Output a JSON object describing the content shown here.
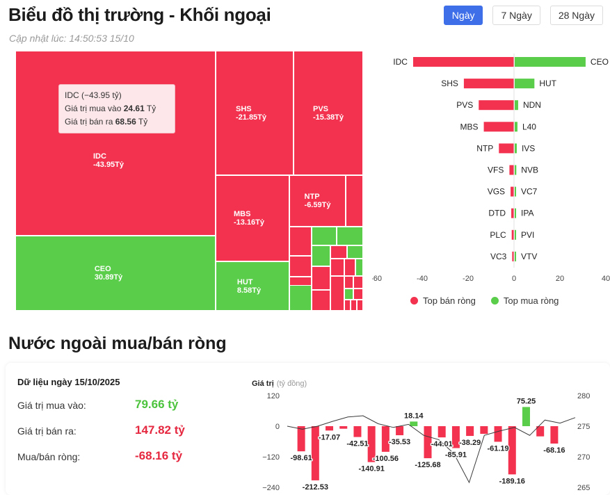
{
  "header": {
    "title": "Biểu đồ thị trường - Khối ngoại",
    "updated": "Cập nhật lúc: 14:50:53 15/10",
    "tabs": [
      {
        "label": "Ngày",
        "active": true
      },
      {
        "label": "7 Ngày",
        "active": false
      },
      {
        "label": "28 Ngày",
        "active": false
      }
    ]
  },
  "treemap": {
    "labeled": [
      {
        "name": "IDC",
        "value": "-43.95Tỷ"
      },
      {
        "name": "CEO",
        "value": "30.89Tỷ"
      },
      {
        "name": "SHS",
        "value": "-21.85Tỷ"
      },
      {
        "name": "PVS",
        "value": "-15.38Tỷ"
      },
      {
        "name": "MBS",
        "value": "-13.16Tỷ"
      },
      {
        "name": "NTP",
        "value": "-6.59Tỷ"
      },
      {
        "name": "HUT",
        "value": "8.58Tỷ"
      }
    ],
    "tooltip": {
      "title": "IDC (−43.95 tỷ)",
      "buy_label": "Giá trị mua vào",
      "buy_value": "24.61",
      "sell_label": "Giá trị bán ra",
      "sell_value": "68.56",
      "unit": "Tỷ"
    }
  },
  "top_chart": {
    "colors": {
      "sell": "#f2324f",
      "buy": "#5acd4a"
    },
    "sell": [
      {
        "code": "IDC",
        "value": -43.95
      },
      {
        "code": "SHS",
        "value": -21.85
      },
      {
        "code": "PVS",
        "value": -15.38
      },
      {
        "code": "MBS",
        "value": -13.16
      },
      {
        "code": "NTP",
        "value": -6.59
      },
      {
        "code": "VFS",
        "value": -2.0
      },
      {
        "code": "VGS",
        "value": -1.5
      },
      {
        "code": "DTD",
        "value": -1.2
      },
      {
        "code": "PLC",
        "value": -1.0
      },
      {
        "code": "VC3",
        "value": -0.8
      }
    ],
    "buy": [
      {
        "code": "CEO",
        "value": 30.89
      },
      {
        "code": "HUT",
        "value": 8.58
      },
      {
        "code": "NDN",
        "value": 1.5
      },
      {
        "code": "L40",
        "value": 1.2
      },
      {
        "code": "IVS",
        "value": 0.9
      },
      {
        "code": "NVB",
        "value": 0.7
      },
      {
        "code": "VC7",
        "value": 0.6
      },
      {
        "code": "IPA",
        "value": 0.5
      },
      {
        "code": "PVI",
        "value": 0.4
      },
      {
        "code": "VTV",
        "value": 0.3
      }
    ],
    "xticks": [
      "-60",
      "-40",
      "-20",
      "0",
      "20",
      "40"
    ],
    "legend": {
      "sell": "Top bán ròng",
      "buy": "Top mua ròng"
    }
  },
  "section2": {
    "title": "Nước ngoài mua/bán ròng",
    "date_label": "Dữ liệu ngày 15/10/2025",
    "rows": [
      {
        "label": "Giá trị mua vào:",
        "value": "79.66 tỷ"
      },
      {
        "label": "Giá trị bán ra:",
        "value": "147.82 tỷ"
      },
      {
        "label": "Mua/bán ròng:",
        "value": "-68.16 tỷ"
      }
    ]
  },
  "flow_chart": {
    "ylabel": "Giá trị",
    "yunit": "(tỷ đồng)",
    "left_ticks": [
      "120",
      "0",
      "−120",
      "−240"
    ],
    "right_ticks": [
      "280",
      "275",
      "270",
      "265"
    ],
    "bars": [
      -98.61,
      -212.53,
      -17.07,
      -10,
      -42.51,
      -140.91,
      -100.56,
      -35.53,
      18.14,
      -125.68,
      -44.01,
      -85.91,
      -38.29,
      -30,
      -61.19,
      -189.16,
      75.25,
      -40,
      -68.16
    ],
    "bar_labels": [
      "-98.61",
      "-212.53",
      "-17.07",
      "",
      "-42.51",
      "-140.91",
      "-100.56",
      "-35.53",
      "18.14",
      "-125.68",
      "-44.01",
      "-85.91",
      "-38.29",
      "",
      "-61.19",
      "-189.16",
      "75.25",
      "",
      "-68.16"
    ],
    "index_line": [
      275,
      274.5,
      275,
      275.8,
      276.5,
      276.7,
      275.4,
      274.8,
      275.3,
      273.5,
      272.8,
      270.5,
      265.8,
      273.5,
      274.2,
      274.8,
      273.5,
      276,
      275.5,
      276.4
    ]
  }
}
